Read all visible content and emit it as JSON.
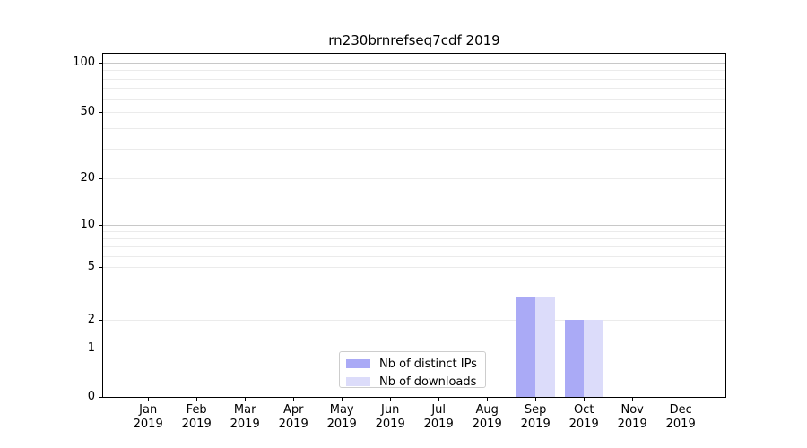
{
  "chart_data": {
    "type": "bar",
    "title": "rn230brnrefseq7cdf 2019",
    "categories": [
      "Jan 2019",
      "Feb 2019",
      "Mar 2019",
      "Apr 2019",
      "May 2019",
      "Jun 2019",
      "Jul 2019",
      "Aug 2019",
      "Sep 2019",
      "Oct 2019",
      "Nov 2019",
      "Dec 2019"
    ],
    "series": [
      {
        "name": "Nb of distinct IPs",
        "color": "#aaaaf6",
        "values": [
          0,
          0,
          0,
          0,
          0,
          0,
          0,
          0,
          3,
          2,
          0,
          0
        ]
      },
      {
        "name": "Nb of downloads",
        "color": "#dcdcfa",
        "values": [
          0,
          0,
          0,
          0,
          0,
          0,
          0,
          0,
          3,
          2,
          0,
          0
        ]
      }
    ],
    "y_axis": {
      "scale": "symlog",
      "ticks": [
        0,
        1,
        2,
        5,
        10,
        20,
        50,
        100
      ],
      "minor_ticks": [
        3,
        4,
        6,
        7,
        8,
        9,
        30,
        40,
        60,
        70,
        80,
        90
      ],
      "range": [
        0,
        120
      ]
    },
    "x_axis": {
      "label": "",
      "tick_label_lines": 2
    },
    "legend": {
      "position": "bottom-center"
    },
    "colors": {
      "decade_gridline": "#c8c8c8",
      "minor_gridline": "#ebebeb",
      "frame": "#000000",
      "background": "#ffffff"
    },
    "grid": true
  }
}
